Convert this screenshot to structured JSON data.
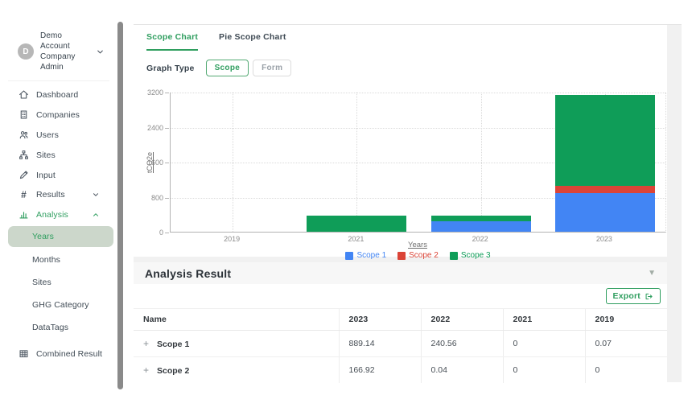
{
  "account": {
    "initial": "D",
    "name": "Demo Account",
    "role": "Company Admin"
  },
  "sidebar": {
    "items": [
      {
        "label": "Dashboard"
      },
      {
        "label": "Companies"
      },
      {
        "label": "Users"
      },
      {
        "label": "Sites"
      },
      {
        "label": "Input"
      },
      {
        "label": "Results"
      },
      {
        "label": "Analysis"
      }
    ],
    "analysis_subitems": [
      {
        "label": "Years"
      },
      {
        "label": "Months"
      },
      {
        "label": "Sites"
      },
      {
        "label": "GHG Category"
      },
      {
        "label": "DataTags"
      }
    ],
    "combined_result_label": "Combined Result"
  },
  "tabs": {
    "scope_chart": "Scope Chart",
    "pie_scope_chart": "Pie Scope Chart"
  },
  "graph_type": {
    "label": "Graph Type",
    "scope": "Scope",
    "form": "Form"
  },
  "chart_data": {
    "type": "bar",
    "stacked": true,
    "categories": [
      "2019",
      "2021",
      "2022",
      "2023"
    ],
    "series": [
      {
        "name": "Scope 1",
        "color": "#4285F4",
        "values": [
          0.07,
          0,
          240.56,
          889.14
        ]
      },
      {
        "name": "Scope 2",
        "color": "#DB4437",
        "values": [
          0,
          0,
          0.04,
          166.92
        ]
      },
      {
        "name": "Scope 3",
        "color": "#0F9D58",
        "values": [
          0,
          365,
          135,
          2070
        ]
      }
    ],
    "xlabel": "Years",
    "ylabel": "tCO2e",
    "ylim": [
      0,
      3200
    ],
    "yticks": [
      0,
      800,
      1600,
      2400,
      3200
    ],
    "grid": "dotted",
    "legend_position": "bottom"
  },
  "analysis_result": {
    "title": "Analysis Result",
    "export_label": "Export",
    "columns": [
      "Name",
      "2023",
      "2022",
      "2021",
      "2019"
    ],
    "rows": [
      {
        "name": "Scope 1",
        "values": [
          "889.14",
          "240.56",
          "0",
          "0.07"
        ]
      },
      {
        "name": "Scope 2",
        "values": [
          "166.92",
          "0.04",
          "0",
          "0"
        ]
      }
    ]
  },
  "colors": {
    "accent_green": "#2F9E5F",
    "active_subitem_bg": "#CCD7CB",
    "scope1_blue": "#4285F4",
    "scope2_red": "#DB4437",
    "scope3_green": "#0F9D58"
  }
}
